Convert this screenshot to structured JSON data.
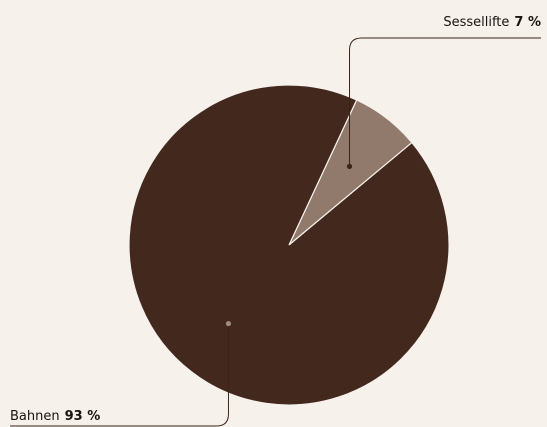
{
  "chart_data": {
    "type": "pie",
    "title": "",
    "slices": [
      {
        "label": "Bahnen",
        "value": 93,
        "display": "93 %",
        "color": "#43291d"
      },
      {
        "label": "Sessellifte",
        "value": 7,
        "display": "7 %",
        "color": "#917a6c"
      }
    ],
    "slice_border_color": "#f7f1ec",
    "leader_line_color": "#3a2419",
    "dot_color": "#a08d80"
  }
}
